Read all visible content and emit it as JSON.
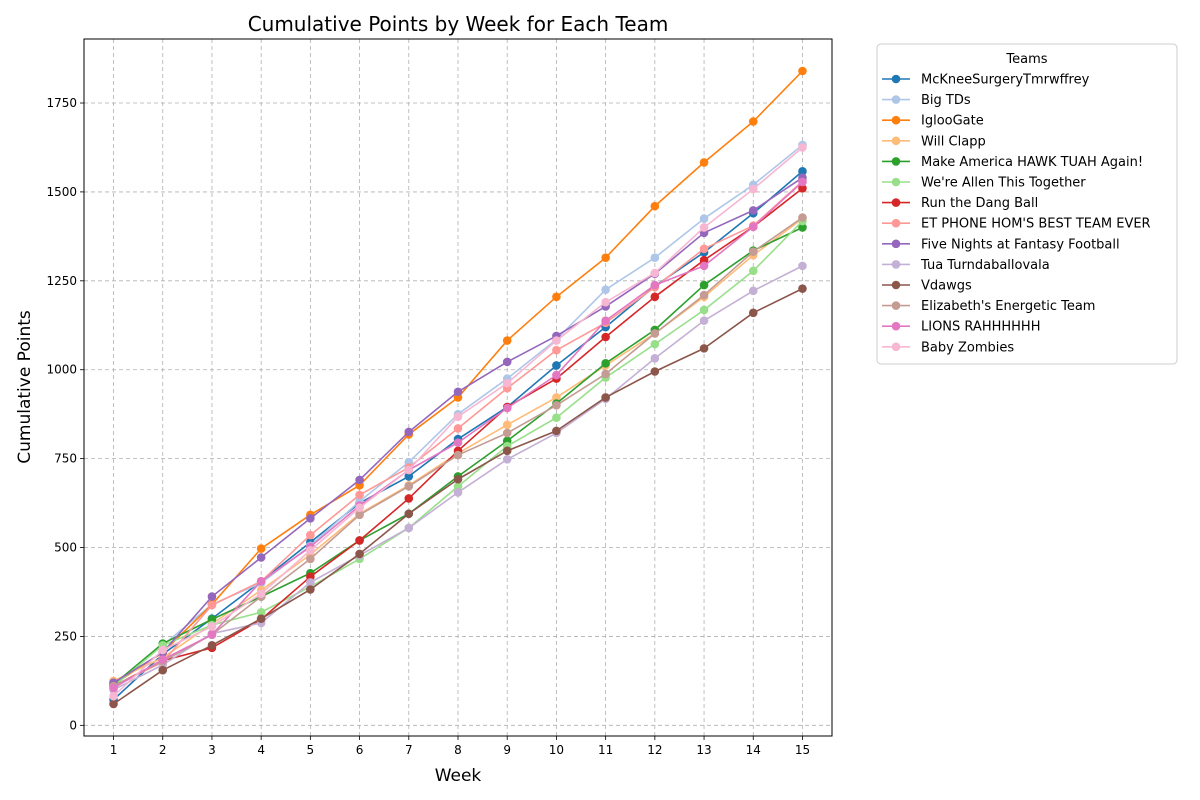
{
  "chart_data": {
    "type": "line",
    "title": "Cumulative Points by Week for Each Team",
    "xlabel": "Week",
    "ylabel": "Cumulative Points",
    "x": [
      1,
      2,
      3,
      4,
      5,
      6,
      7,
      8,
      9,
      10,
      11,
      12,
      13,
      14,
      15
    ],
    "xlim": [
      0.4,
      15.6
    ],
    "ylim": [
      -30,
      1930
    ],
    "yticks": [
      0,
      250,
      500,
      750,
      1000,
      1250,
      1500,
      1750
    ],
    "grid": true,
    "legend_title": "Teams",
    "legend_position": "outside-right",
    "series": [
      {
        "name": "McKneeSurgeryTmrwffrey",
        "color": "#1f77b4",
        "values": [
          72,
          200,
          300,
          405,
          515,
          625,
          700,
          805,
          895,
          1012,
          1120,
          1235,
          1330,
          1440,
          1558
        ]
      },
      {
        "name": "Big TDs",
        "color": "#aec7e8",
        "values": [
          115,
          225,
          340,
          400,
          505,
          630,
          740,
          875,
          975,
          1085,
          1225,
          1315,
          1425,
          1520,
          1632
        ]
      },
      {
        "name": "IglooGate",
        "color": "#ff7f0e",
        "values": [
          115,
          205,
          340,
          497,
          592,
          675,
          818,
          922,
          1082,
          1205,
          1315,
          1460,
          1583,
          1698,
          1840
        ]
      },
      {
        "name": "Will Clapp",
        "color": "#ffbb78",
        "values": [
          125,
          190,
          285,
          380,
          480,
          595,
          675,
          765,
          845,
          922,
          1012,
          1102,
          1205,
          1322,
          1425
        ]
      },
      {
        "name": "Make America HAWK TUAH Again!",
        "color": "#2ca02c",
        "values": [
          115,
          230,
          298,
          362,
          428,
          520,
          595,
          700,
          800,
          905,
          1018,
          1112,
          1238,
          1335,
          1400
        ]
      },
      {
        "name": "We're Allen This Together",
        "color": "#98df8a",
        "values": [
          110,
          225,
          282,
          318,
          390,
          468,
          555,
          672,
          785,
          865,
          978,
          1072,
          1168,
          1278,
          1418
        ]
      },
      {
        "name": "Run the Dang Ball",
        "color": "#d62728",
        "values": [
          110,
          182,
          218,
          298,
          418,
          520,
          638,
          772,
          895,
          975,
          1092,
          1205,
          1308,
          1402,
          1510
        ]
      },
      {
        "name": "ET PHONE HOM'S BEST TEAM EVER",
        "color": "#ff9896",
        "values": [
          110,
          178,
          338,
          405,
          535,
          648,
          725,
          835,
          948,
          1055,
          1132,
          1232,
          1340,
          1405,
          1530
        ]
      },
      {
        "name": "Five Nights at Fantasy Football",
        "color": "#9467bd",
        "values": [
          120,
          205,
          362,
          472,
          582,
          690,
          825,
          938,
          1022,
          1095,
          1178,
          1270,
          1385,
          1448,
          1540
        ]
      },
      {
        "name": "Tua Turndaballovala",
        "color": "#c5b0d5",
        "values": [
          100,
          170,
          258,
          288,
          402,
          478,
          555,
          655,
          748,
          822,
          918,
          1032,
          1138,
          1222,
          1292
        ]
      },
      {
        "name": "Vdawgs",
        "color": "#8c564b",
        "values": [
          60,
          155,
          225,
          300,
          382,
          482,
          595,
          692,
          772,
          828,
          922,
          995,
          1060,
          1160,
          1228
        ]
      },
      {
        "name": "Elizabeth's Energetic Team",
        "color": "#c49c94",
        "values": [
          110,
          180,
          255,
          362,
          468,
          592,
          672,
          760,
          822,
          900,
          988,
          1102,
          1210,
          1332,
          1428
        ]
      },
      {
        "name": "LIONS RAHHHHHH",
        "color": "#e377c2",
        "values": [
          105,
          185,
          255,
          405,
          502,
          618,
          718,
          795,
          892,
          985,
          1138,
          1238,
          1292,
          1402,
          1528
        ]
      },
      {
        "name": "Baby Zombies",
        "color": "#f7b6d2",
        "values": [
          82,
          212,
          278,
          370,
          492,
          612,
          718,
          868,
          962,
          1082,
          1190,
          1272,
          1400,
          1508,
          1625
        ]
      }
    ]
  }
}
